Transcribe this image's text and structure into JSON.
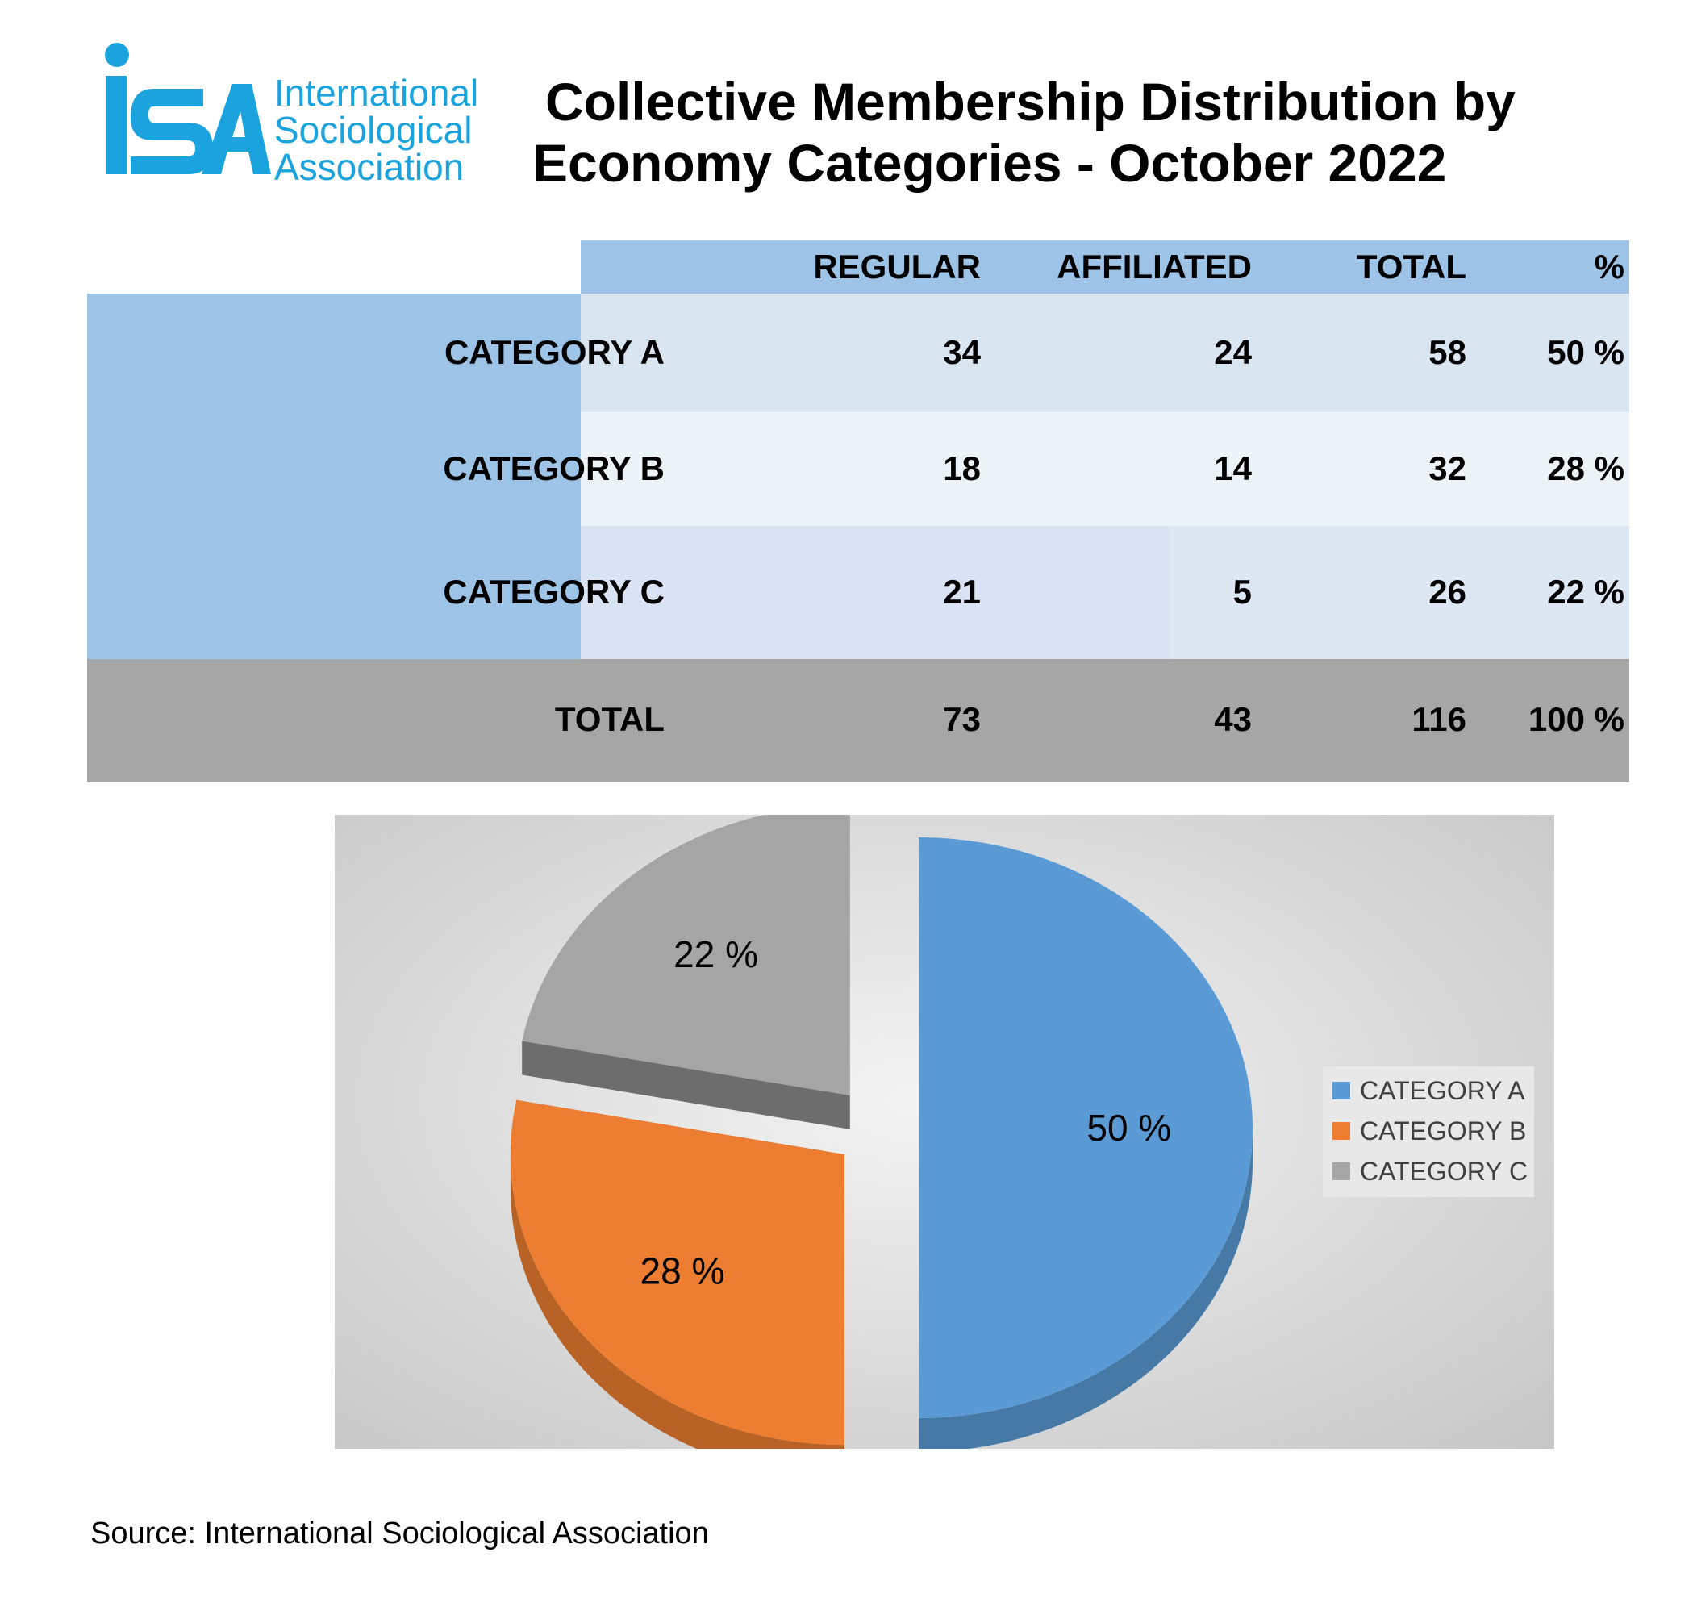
{
  "logo": {
    "letters": "ISA",
    "lines": [
      "International",
      "Sociological",
      "Association"
    ],
    "color": "#1aa3dc"
  },
  "title": {
    "line1": "Collective Membership Distribution by",
    "line2": "Economy Categories - October 2022"
  },
  "table": {
    "headers": [
      "REGULAR",
      "AFFILIATED",
      "TOTAL",
      "%"
    ],
    "rows": [
      {
        "label": "CATEGORY A",
        "regular": "34",
        "affiliated": "24",
        "total": "58",
        "percent": "50 %"
      },
      {
        "label": "CATEGORY B",
        "regular": "18",
        "affiliated": "14",
        "total": "32",
        "percent": "28 %"
      },
      {
        "label": "CATEGORY C",
        "regular": "21",
        "affiliated": "5",
        "total": "26",
        "percent": "22 %"
      }
    ],
    "total": {
      "label": "TOTAL",
      "regular": "73",
      "affiliated": "43",
      "total": "116",
      "percent": "100 %"
    }
  },
  "chart_data": {
    "type": "pie",
    "style": "3d-exploded",
    "categories": [
      "CATEGORY A",
      "CATEGORY B",
      "CATEGORY C"
    ],
    "values": [
      50,
      28,
      22
    ],
    "data_labels": [
      "50 %",
      "28 %",
      "22 %"
    ],
    "colors": [
      "#5b9bd5",
      "#ed7d31",
      "#a5a5a5"
    ],
    "legend": {
      "position": "right",
      "entries": [
        "CATEGORY A",
        "CATEGORY B",
        "CATEGORY C"
      ]
    }
  },
  "source": "Source: International Sociological Association"
}
